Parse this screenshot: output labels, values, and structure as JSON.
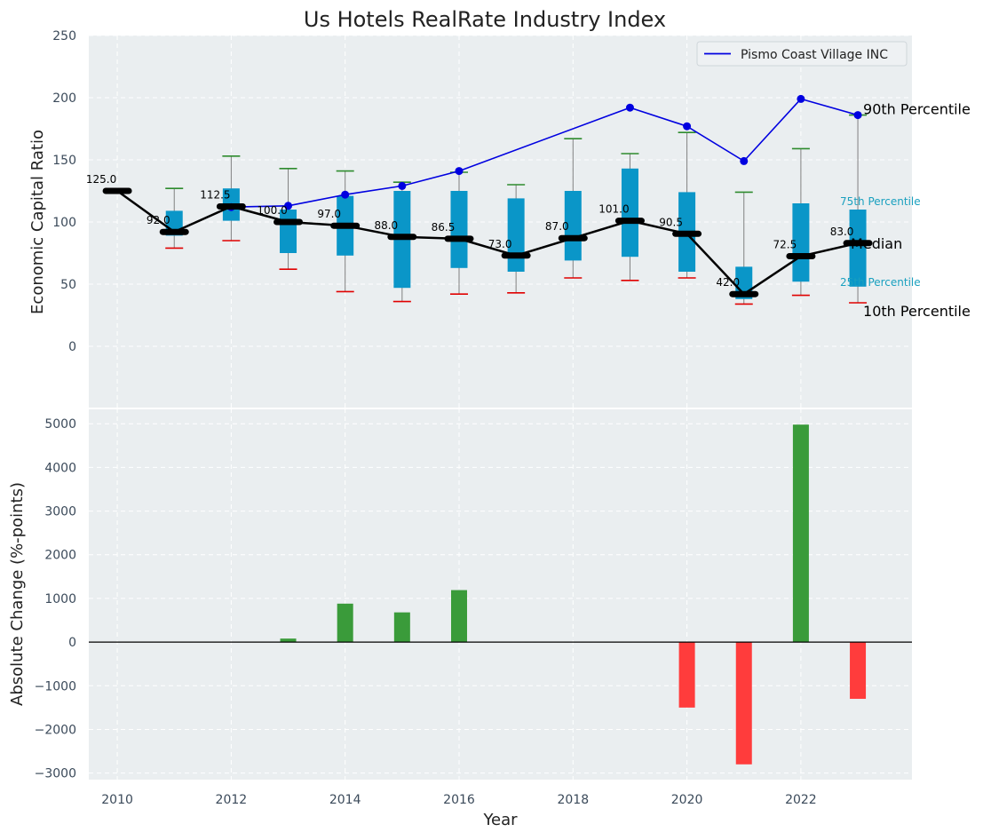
{
  "title": "Us Hotels RealRate Industry Index",
  "chart_data": [
    {
      "type": "boxplot+line",
      "title": "Us Hotels RealRate Industry Index",
      "ylabel": "Economic Capital Ratio",
      "xlabel": "",
      "ylim": [
        -50,
        250
      ],
      "xlim": [
        2009.5,
        2023.95
      ],
      "yticks": [
        0,
        50,
        100,
        150,
        200,
        250
      ],
      "grid": true,
      "legend": {
        "position": "top-right",
        "entries": [
          "Pismo Coast Village INC"
        ]
      },
      "colors": {
        "box": "#0a96c8",
        "median_line": "#000000",
        "company_line": "#0000e0",
        "p90_cap": "#2e8b2e",
        "p10_cap": "#e00000",
        "whisker": "#808080",
        "pct_label": "#1aa0bf"
      },
      "years": [
        2010,
        2011,
        2012,
        2013,
        2014,
        2015,
        2016,
        2017,
        2018,
        2019,
        2020,
        2021,
        2022,
        2023
      ],
      "medians": [
        125.0,
        92.0,
        112.5,
        100.0,
        97.0,
        88.0,
        86.5,
        73.0,
        87.0,
        101.0,
        90.5,
        42.0,
        72.5,
        83.0
      ],
      "median_labels": [
        "125.0",
        "92.0",
        "112.5",
        "100.0",
        "97.0",
        "88.0",
        "86.5",
        "73.0",
        "87.0",
        "101.0",
        "90.5",
        "42.0",
        "72.5",
        "83.0"
      ],
      "p25": [
        125,
        89,
        101,
        75,
        73,
        47,
        63,
        60,
        69,
        72,
        60,
        38,
        52,
        48
      ],
      "p75": [
        125,
        109,
        127,
        110,
        121,
        125,
        125,
        119,
        125,
        143,
        124,
        64,
        115,
        110
      ],
      "p10": [
        125,
        79,
        85,
        62,
        44,
        36,
        42,
        43,
        55,
        53,
        55,
        34,
        41,
        35
      ],
      "p90": [
        125,
        127,
        153,
        143,
        141,
        132,
        140,
        130,
        167,
        155,
        172,
        124,
        159,
        186
      ],
      "company": {
        "name": "Pismo Coast Village INC",
        "years": [
          2012,
          2013,
          2014,
          2015,
          2016,
          2019,
          2020,
          2021,
          2022,
          2023
        ],
        "values": [
          112,
          113,
          122,
          129,
          141,
          192,
          177,
          149,
          199,
          186
        ]
      },
      "percentile_annotations": {
        "p90": "90th Percentile",
        "p75": "75th Percentile",
        "median": "Median",
        "p25": "25th Percentile",
        "p10": "10th Percentile"
      }
    },
    {
      "type": "bar",
      "ylabel": "Absolute Change (%-points)",
      "xlabel": "Year",
      "ylim": [
        -3150,
        5350
      ],
      "yticks": [
        -3000,
        -2000,
        -1000,
        0,
        1000,
        2000,
        3000,
        4000,
        5000
      ],
      "xticks": [
        2010,
        2012,
        2014,
        2016,
        2018,
        2020,
        2022
      ],
      "grid": true,
      "colors": {
        "positive": "#3a9b3a",
        "negative": "#ff3c3c"
      },
      "years": [
        2013,
        2014,
        2015,
        2016,
        2020,
        2021,
        2022,
        2023
      ],
      "values": [
        80,
        880,
        680,
        1190,
        -1500,
        -2800,
        4980,
        -1300
      ]
    }
  ]
}
